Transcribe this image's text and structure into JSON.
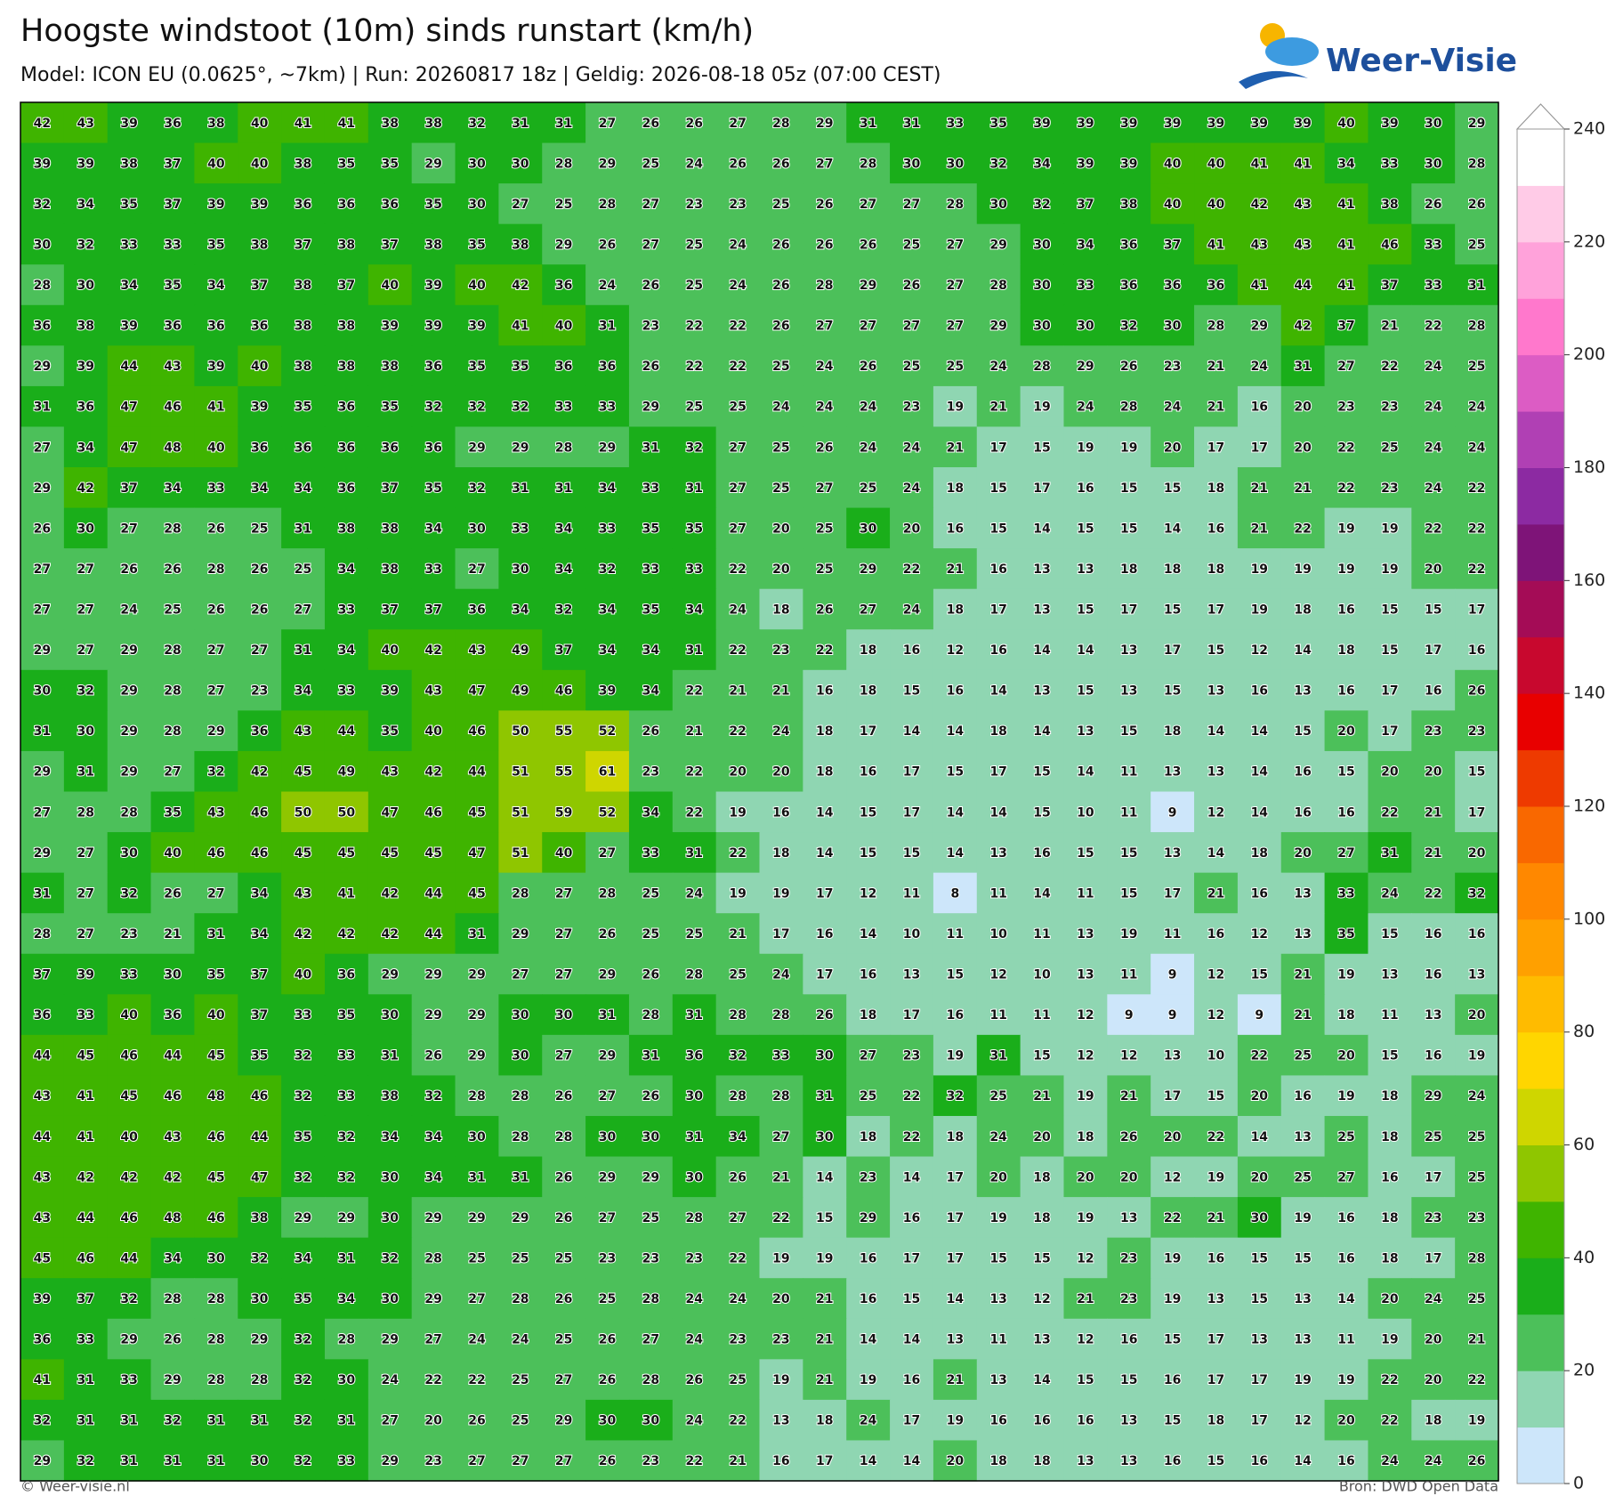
{
  "header": {
    "title": "Hoogste windstoot (10m) sinds runstart (km/h)",
    "subtitle": "Model: ICON EU (0.0625°, ~7km)  |  Run: 20260817 18z  |  Geldig: 2026-08-18 05z (07:00 CEST)",
    "logo": "Weer-Visie"
  },
  "footer": {
    "left": "© Weer-visie.nl",
    "right": "Bron: DWD Open Data"
  },
  "colorbar": {
    "ticks": [
      0,
      20,
      40,
      60,
      80,
      100,
      120,
      140,
      160,
      180,
      200,
      220,
      240
    ],
    "colors": [
      "#cde6fa",
      "#8fd6b2",
      "#4cc05a",
      "#1aae1a",
      "#3fb400",
      "#8fc600",
      "#cfd600",
      "#ffd600",
      "#ffbb00",
      "#ffa000",
      "#ff8800",
      "#f96800",
      "#ee3a00",
      "#e80000",
      "#c8082e",
      "#a40c56",
      "#7e1478",
      "#8c2aa2",
      "#b040b4",
      "#dc5cc4",
      "#ff78cc",
      "#ffa2da",
      "#ffcbe7",
      "#ffffff"
    ]
  },
  "grid": {
    "rows": [
      [
        42,
        43,
        39,
        36,
        38,
        40,
        41,
        41,
        38,
        38,
        32,
        31,
        31,
        27,
        26,
        26,
        27,
        28,
        29,
        31,
        31,
        33,
        35,
        39,
        39,
        39,
        39,
        39,
        39,
        39,
        40,
        39,
        30,
        29
      ],
      [
        39,
        39,
        38,
        37,
        40,
        40,
        38,
        35,
        35,
        29,
        30,
        30,
        28,
        29,
        25,
        24,
        26,
        26,
        27,
        28,
        30,
        30,
        32,
        34,
        39,
        39,
        40,
        40,
        41,
        41,
        34,
        33,
        30,
        28
      ],
      [
        32,
        34,
        35,
        37,
        39,
        39,
        36,
        36,
        36,
        35,
        30,
        27,
        25,
        28,
        27,
        23,
        23,
        25,
        26,
        27,
        27,
        28,
        30,
        32,
        37,
        38,
        40,
        40,
        42,
        43,
        41,
        38,
        26,
        26
      ],
      [
        30,
        32,
        33,
        33,
        35,
        38,
        37,
        38,
        37,
        38,
        35,
        38,
        29,
        26,
        27,
        25,
        24,
        26,
        26,
        26,
        25,
        27,
        29,
        30,
        34,
        36,
        37,
        41,
        43,
        43,
        41,
        46,
        33,
        25
      ],
      [
        28,
        30,
        34,
        35,
        34,
        37,
        38,
        37,
        40,
        39,
        40,
        42,
        36,
        24,
        26,
        25,
        24,
        26,
        28,
        29,
        26,
        27,
        28,
        30,
        33,
        36,
        36,
        36,
        41,
        44,
        41,
        37,
        33,
        31
      ],
      [
        36,
        38,
        39,
        36,
        36,
        36,
        38,
        38,
        39,
        39,
        39,
        41,
        40,
        31,
        23,
        22,
        22,
        26,
        27,
        27,
        27,
        27,
        29,
        30,
        30,
        32,
        30,
        28,
        29,
        42,
        37,
        21,
        22,
        28
      ],
      [
        29,
        39,
        44,
        43,
        39,
        40,
        38,
        38,
        38,
        36,
        35,
        35,
        36,
        36,
        26,
        22,
        22,
        25,
        24,
        26,
        25,
        25,
        24,
        28,
        29,
        26,
        23,
        21,
        24,
        31,
        27,
        22,
        24,
        25
      ],
      [
        31,
        36,
        47,
        46,
        41,
        39,
        35,
        36,
        35,
        32,
        32,
        32,
        33,
        33,
        29,
        25,
        25,
        24,
        24,
        24,
        23,
        19,
        21,
        19,
        24,
        28,
        24,
        21,
        16,
        20,
        23,
        23,
        24,
        24
      ],
      [
        27,
        34,
        47,
        48,
        40,
        36,
        36,
        36,
        36,
        36,
        29,
        29,
        28,
        29,
        31,
        32,
        27,
        25,
        26,
        24,
        24,
        21,
        17,
        15,
        19,
        19,
        20,
        17,
        17,
        20,
        22,
        25,
        24,
        24
      ],
      [
        29,
        42,
        37,
        34,
        33,
        34,
        34,
        36,
        37,
        35,
        32,
        31,
        31,
        34,
        33,
        31,
        27,
        25,
        27,
        25,
        24,
        18,
        15,
        17,
        16,
        15,
        15,
        18,
        21,
        21,
        22,
        23,
        24,
        22
      ],
      [
        26,
        30,
        27,
        28,
        26,
        25,
        31,
        38,
        38,
        34,
        30,
        33,
        34,
        33,
        35,
        35,
        27,
        20,
        25,
        30,
        20,
        16,
        15,
        14,
        15,
        15,
        14,
        16,
        21,
        22,
        19,
        19,
        22,
        22
      ],
      [
        27,
        27,
        26,
        26,
        28,
        26,
        25,
        34,
        38,
        33,
        27,
        30,
        34,
        32,
        33,
        33,
        22,
        20,
        25,
        29,
        22,
        21,
        16,
        13,
        13,
        18,
        18,
        18,
        19,
        19,
        19,
        19,
        20,
        22
      ],
      [
        27,
        27,
        24,
        25,
        26,
        26,
        27,
        33,
        37,
        37,
        36,
        34,
        32,
        34,
        35,
        34,
        24,
        18,
        26,
        27,
        24,
        18,
        17,
        13,
        15,
        17,
        15,
        17,
        19,
        18,
        16,
        15,
        15,
        17
      ],
      [
        29,
        27,
        29,
        28,
        27,
        27,
        31,
        34,
        40,
        42,
        43,
        49,
        37,
        34,
        34,
        31,
        22,
        23,
        22,
        18,
        16,
        12,
        16,
        14,
        14,
        13,
        17,
        15,
        12,
        14,
        18,
        15,
        17,
        16
      ],
      [
        30,
        32,
        29,
        28,
        27,
        23,
        34,
        33,
        39,
        43,
        47,
        49,
        46,
        39,
        34,
        22,
        21,
        21,
        16,
        18,
        15,
        16,
        14,
        13,
        15,
        13,
        15,
        13,
        16,
        13,
        16,
        17,
        16,
        26
      ],
      [
        31,
        30,
        29,
        28,
        29,
        36,
        43,
        44,
        35,
        40,
        46,
        50,
        55,
        52,
        26,
        21,
        22,
        24,
        18,
        17,
        14,
        14,
        18,
        14,
        13,
        15,
        18,
        14,
        14,
        15,
        20,
        17,
        23,
        23
      ],
      [
        29,
        31,
        29,
        27,
        32,
        42,
        45,
        49,
        43,
        42,
        44,
        51,
        55,
        61,
        23,
        22,
        20,
        20,
        18,
        16,
        17,
        15,
        17,
        15,
        14,
        11,
        13,
        13,
        14,
        16,
        15,
        20,
        20,
        15
      ],
      [
        27,
        28,
        28,
        35,
        43,
        46,
        50,
        50,
        47,
        46,
        45,
        51,
        59,
        52,
        34,
        22,
        19,
        16,
        14,
        15,
        17,
        14,
        14,
        15,
        10,
        11,
        9,
        12,
        14,
        16,
        16,
        22,
        21,
        17
      ],
      [
        29,
        27,
        30,
        40,
        46,
        46,
        45,
        45,
        45,
        45,
        47,
        51,
        40,
        27,
        33,
        31,
        22,
        18,
        14,
        15,
        15,
        14,
        13,
        16,
        15,
        15,
        13,
        14,
        18,
        20,
        27,
        31,
        21,
        20
      ],
      [
        31,
        27,
        32,
        26,
        27,
        34,
        43,
        41,
        42,
        44,
        45,
        28,
        27,
        28,
        25,
        24,
        19,
        19,
        17,
        12,
        11,
        8,
        11,
        14,
        11,
        15,
        17,
        21,
        16,
        13,
        33,
        24,
        22,
        32
      ],
      [
        28,
        27,
        23,
        21,
        31,
        34,
        42,
        42,
        42,
        44,
        31,
        29,
        27,
        26,
        25,
        25,
        21,
        17,
        16,
        14,
        10,
        11,
        10,
        11,
        13,
        19,
        11,
        16,
        12,
        13,
        35,
        15,
        16,
        16
      ],
      [
        37,
        39,
        33,
        30,
        35,
        37,
        40,
        36,
        29,
        29,
        29,
        27,
        27,
        29,
        26,
        28,
        25,
        24,
        17,
        16,
        13,
        15,
        12,
        10,
        13,
        11,
        9,
        12,
        15,
        21,
        19,
        13,
        16,
        13
      ],
      [
        36,
        33,
        40,
        36,
        40,
        37,
        33,
        35,
        30,
        29,
        29,
        30,
        30,
        31,
        28,
        31,
        28,
        28,
        26,
        18,
        17,
        16,
        11,
        11,
        12,
        9,
        9,
        12,
        9,
        21,
        18,
        11,
        13,
        20
      ],
      [
        44,
        45,
        46,
        44,
        45,
        35,
        32,
        33,
        31,
        26,
        29,
        30,
        27,
        29,
        31,
        36,
        32,
        33,
        30,
        27,
        23,
        19,
        31,
        15,
        12,
        12,
        13,
        10,
        22,
        25,
        20,
        15,
        16,
        19
      ],
      [
        43,
        41,
        45,
        46,
        48,
        46,
        32,
        33,
        38,
        32,
        28,
        28,
        26,
        27,
        26,
        30,
        28,
        28,
        31,
        25,
        22,
        32,
        25,
        21,
        19,
        21,
        17,
        15,
        20,
        16,
        19,
        18,
        29,
        24
      ],
      [
        44,
        41,
        40,
        43,
        46,
        44,
        35,
        32,
        34,
        34,
        30,
        28,
        28,
        30,
        30,
        31,
        34,
        27,
        30,
        18,
        22,
        18,
        24,
        20,
        18,
        26,
        20,
        22,
        14,
        13,
        25,
        18,
        25,
        25
      ],
      [
        43,
        42,
        42,
        42,
        45,
        47,
        32,
        32,
        30,
        34,
        31,
        31,
        26,
        29,
        29,
        30,
        26,
        21,
        14,
        23,
        14,
        17,
        20,
        18,
        20,
        20,
        12,
        19,
        20,
        25,
        27,
        16,
        17,
        25
      ],
      [
        43,
        44,
        46,
        48,
        46,
        38,
        29,
        29,
        30,
        29,
        29,
        29,
        26,
        27,
        25,
        28,
        27,
        22,
        15,
        29,
        16,
        17,
        19,
        18,
        19,
        13,
        22,
        21,
        30,
        19,
        16,
        18,
        23,
        23
      ],
      [
        45,
        46,
        44,
        34,
        30,
        32,
        34,
        31,
        32,
        28,
        25,
        25,
        25,
        23,
        23,
        23,
        22,
        19,
        19,
        16,
        17,
        17,
        15,
        15,
        12,
        23,
        19,
        16,
        15,
        15,
        16,
        18,
        17,
        28
      ],
      [
        39,
        37,
        32,
        28,
        28,
        30,
        35,
        34,
        30,
        29,
        27,
        28,
        26,
        25,
        28,
        24,
        24,
        20,
        21,
        16,
        15,
        14,
        13,
        12,
        21,
        23,
        19,
        13,
        15,
        13,
        14,
        20,
        24,
        25
      ],
      [
        36,
        33,
        29,
        26,
        28,
        29,
        32,
        28,
        29,
        27,
        24,
        24,
        25,
        26,
        27,
        24,
        23,
        23,
        21,
        14,
        14,
        13,
        11,
        13,
        12,
        16,
        15,
        17,
        13,
        13,
        11,
        19,
        20,
        21
      ],
      [
        41,
        31,
        33,
        29,
        28,
        28,
        32,
        30,
        24,
        22,
        22,
        25,
        27,
        26,
        28,
        26,
        25,
        19,
        21,
        19,
        16,
        21,
        13,
        14,
        15,
        15,
        16,
        17,
        17,
        19,
        19,
        22,
        20,
        22
      ],
      [
        32,
        31,
        31,
        32,
        31,
        31,
        32,
        31,
        27,
        20,
        26,
        25,
        29,
        30,
        30,
        24,
        22,
        13,
        18,
        24,
        17,
        19,
        16,
        16,
        16,
        13,
        15,
        18,
        17,
        12,
        20,
        22,
        18,
        19
      ],
      [
        29,
        32,
        31,
        31,
        31,
        30,
        32,
        33,
        29,
        23,
        27,
        27,
        27,
        26,
        23,
        22,
        21,
        16,
        17,
        14,
        14,
        20,
        18,
        18,
        13,
        13,
        16,
        15,
        16,
        14,
        16,
        24,
        24,
        26
      ]
    ]
  }
}
